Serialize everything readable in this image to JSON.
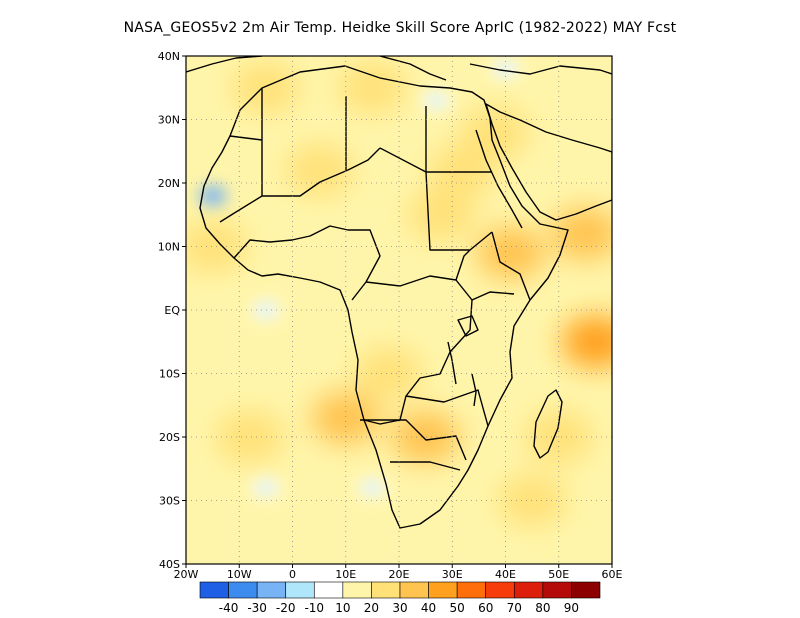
{
  "title": "NASA_GEOS5v2  2m Air Temp. Heidke Skill Score AprIC (1982-2022) MAY Fcst",
  "map": {
    "region": "Africa",
    "lon_range": [
      -20,
      60
    ],
    "lat_range": [
      -40,
      40
    ],
    "lon_ticks": [
      {
        "value": -20,
        "label": "20W"
      },
      {
        "value": -10,
        "label": "10W"
      },
      {
        "value": 0,
        "label": "0"
      },
      {
        "value": 10,
        "label": "10E"
      },
      {
        "value": 20,
        "label": "20E"
      },
      {
        "value": 30,
        "label": "30E"
      },
      {
        "value": 40,
        "label": "40E"
      },
      {
        "value": 50,
        "label": "50E"
      },
      {
        "value": 60,
        "label": "60E"
      }
    ],
    "lat_ticks": [
      {
        "value": 40,
        "label": "40N"
      },
      {
        "value": 30,
        "label": "30N"
      },
      {
        "value": 20,
        "label": "20N"
      },
      {
        "value": 10,
        "label": "10N"
      },
      {
        "value": 0,
        "label": "EQ"
      },
      {
        "value": -10,
        "label": "10S"
      },
      {
        "value": -20,
        "label": "20S"
      },
      {
        "value": -30,
        "label": "30S"
      },
      {
        "value": -40,
        "label": "40S"
      }
    ],
    "gridlines": "dotted"
  },
  "colorbar": {
    "labels": [
      "-40",
      "-30",
      "-20",
      "-10",
      "10",
      "20",
      "30",
      "40",
      "50",
      "60",
      "70",
      "80",
      "90"
    ],
    "colors": [
      "#1e5fe6",
      "#3c8cf0",
      "#78b4f5",
      "#afe6fa",
      "#ffffff",
      "#fff5aa",
      "#ffe178",
      "#ffc350",
      "#ffa01e",
      "#ff6e0a",
      "#f53c0a",
      "#dc1e0a",
      "#b40a0a",
      "#8c0000"
    ]
  },
  "highlight_regions": [
    {
      "lon": 10,
      "lat": -17,
      "level": 30
    },
    {
      "lon": 25,
      "lat": -20,
      "level": 30
    },
    {
      "lon": 41,
      "lat": 9,
      "level": 30
    },
    {
      "lon": 57,
      "lat": -5,
      "level": 40
    },
    {
      "lon": 55,
      "lat": 12,
      "level": 30
    },
    {
      "lon": 32,
      "lat": 22,
      "level": 20
    },
    {
      "lon": 5,
      "lat": 22,
      "level": 20
    },
    {
      "lon": 28,
      "lat": 15,
      "level": 20
    },
    {
      "lon": -8,
      "lat": -20,
      "level": 20
    },
    {
      "lon": 50,
      "lat": -20,
      "level": 20
    },
    {
      "lon": 38,
      "lat": 28,
      "level": 20
    },
    {
      "lon": -15,
      "lat": 10,
      "level": 20
    },
    {
      "lon": 18,
      "lat": -10,
      "level": 20
    },
    {
      "lon": 45,
      "lat": -30,
      "level": 20
    },
    {
      "lon": -5,
      "lat": 35,
      "level": 20
    },
    {
      "lon": 15,
      "lat": 35,
      "level": 20
    }
  ],
  "low_regions": [
    {
      "lon": -15,
      "lat": 18,
      "level": -20
    },
    {
      "lon": -5,
      "lat": -28,
      "level": -10
    },
    {
      "lon": 15,
      "lat": -28,
      "level": -10
    },
    {
      "lon": 27,
      "lat": 33,
      "level": -10
    },
    {
      "lon": 40,
      "lat": 38,
      "level": -10
    },
    {
      "lon": -5,
      "lat": 0,
      "level": -10
    }
  ]
}
